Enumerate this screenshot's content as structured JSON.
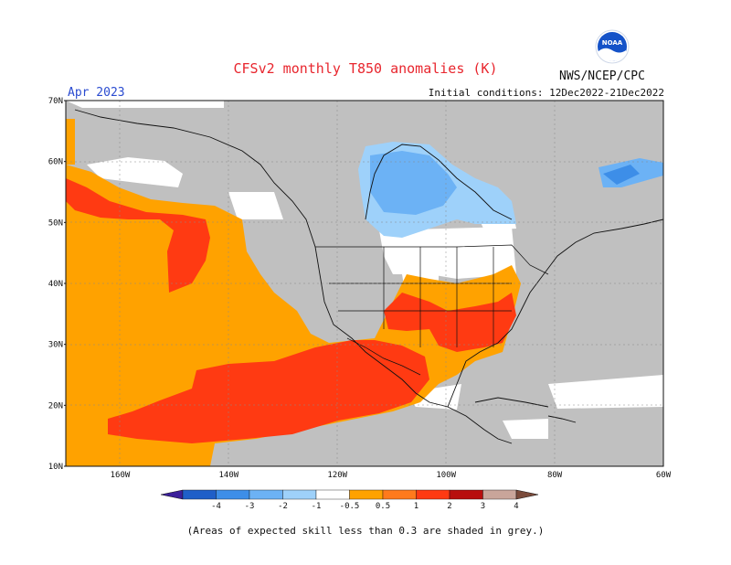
{
  "title": "CFSv2 monthly T850 anomalies (K)",
  "agency": "NWS/NCEP/CPC",
  "logo_text": "NOAA",
  "valid_month": "Apr 2023",
  "initial_conditions": "Initial conditions: 12Dec2022-21Dec2022",
  "footnote": "(Areas of expected skill less than 0.3 are shaded in grey.)",
  "map_extent": {
    "lon": [
      -170,
      -60
    ],
    "lat": [
      10,
      70
    ]
  },
  "lat_labels": [
    "70N",
    "60N",
    "50N",
    "40N",
    "30N",
    "20N",
    "10N"
  ],
  "lon_labels": [
    "160W",
    "140W",
    "120W",
    "100W",
    "80W",
    "60W"
  ],
  "colorbar": {
    "ticks": [
      "-4",
      "-3",
      "-2",
      "-1",
      "-0.5",
      "0.5",
      "1",
      "2",
      "3",
      "4"
    ],
    "colors": [
      "#3b1f9a",
      "#1f5fc8",
      "#3d8ee8",
      "#6cb2f5",
      "#9ed1fa",
      "#ffffff",
      "#ffa200",
      "#ff7a1c",
      "#ff3a12",
      "#b80e0e",
      "#c9a59a",
      "#7a4a3a"
    ]
  },
  "colors": {
    "skill_mask_grey": "#c0c0c0"
  }
}
